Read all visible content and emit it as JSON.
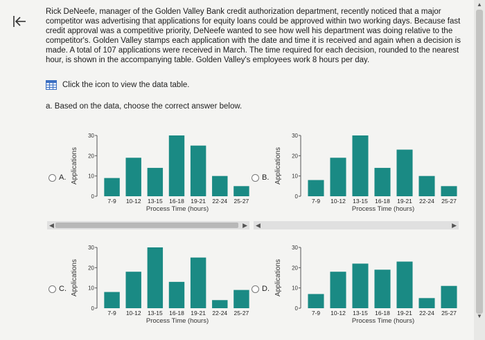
{
  "problem": {
    "text": "Rick DeNeefe, manager of the Golden Valley Bank credit authorization department, recently noticed that a major competitor was advertising that applications for equity loans could be approved within two working days. Because fast credit approval was a competitive priority, DeNeefe wanted to see how well his department was doing relative to the competitor's. Golden Valley stamps each application with the date and time it is received and again when a decision is made. A total of 107 applications were received in March. The time required for each decision, rounded to the nearest hour, is shown in the accompanying table. Golden Valley's employees work 8 hours per day."
  },
  "data_table_link": "Click the icon to view the data table.",
  "question": "a. Based on the data, choose the correct answer below.",
  "colors": {
    "bar": "#1a8a84",
    "radio_border": "#777777"
  },
  "options": [
    {
      "letter": "A."
    },
    {
      "letter": "B."
    },
    {
      "letter": "C."
    },
    {
      "letter": "D."
    }
  ],
  "chart_data": [
    {
      "type": "bar",
      "option": "A",
      "categories": [
        "7-9",
        "10-12",
        "13-15",
        "16-18",
        "19-21",
        "22-24",
        "25-27"
      ],
      "values": [
        9,
        19,
        14,
        30,
        25,
        10,
        5
      ],
      "xlabel": "Process Time (hours)",
      "ylabel": "Applications",
      "yticks": [
        0,
        10,
        20,
        30
      ],
      "ylim": [
        0,
        30
      ]
    },
    {
      "type": "bar",
      "option": "B",
      "categories": [
        "7-9",
        "10-12",
        "13-15",
        "16-18",
        "19-21",
        "22-24",
        "25-27"
      ],
      "values": [
        8,
        19,
        30,
        14,
        23,
        10,
        5
      ],
      "xlabel": "Process Time (hours)",
      "ylabel": "Applications",
      "yticks": [
        0,
        10,
        20,
        30
      ],
      "ylim": [
        0,
        30
      ]
    },
    {
      "type": "bar",
      "option": "C",
      "categories": [
        "7-9",
        "10-12",
        "13-15",
        "16-18",
        "19-21",
        "22-24",
        "25-27"
      ],
      "values": [
        8,
        18,
        30,
        13,
        25,
        4,
        9
      ],
      "xlabel": "Process Time (hours)",
      "ylabel": "Applications",
      "yticks": [
        0,
        10,
        20,
        30
      ],
      "ylim": [
        0,
        30
      ]
    },
    {
      "type": "bar",
      "option": "D",
      "categories": [
        "7-9",
        "10-12",
        "13-15",
        "16-18",
        "19-21",
        "22-24",
        "25-27"
      ],
      "values": [
        7,
        18,
        22,
        19,
        23,
        5,
        11
      ],
      "xlabel": "Process Time (hours)",
      "ylabel": "Applications",
      "yticks": [
        0,
        10,
        20,
        30
      ],
      "ylim": [
        0,
        30
      ]
    }
  ]
}
